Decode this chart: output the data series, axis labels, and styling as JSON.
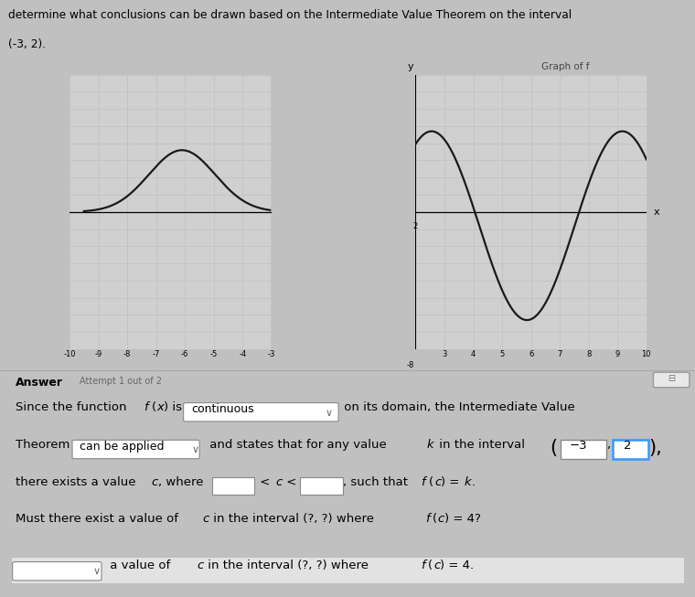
{
  "title_line1": "determine what conclusions can be drawn based on the Intermediate Value Theorem on the interval",
  "title_line2": "(-3, 2).",
  "graph_label": "Graph of f",
  "highlight_color": "#f2c8c8",
  "grid_color": "#bbbbbb",
  "graph_bg": "#d0d0d0",
  "outer_bg": "#c0c0c0",
  "curve_color": "#1a1a1a",
  "answer_bg": "#d8d8d8",
  "white": "#ffffff",
  "blue_border": "#3399ff",
  "gray_border": "#888888",
  "light_gray": "#e0e0e0",
  "text_gray": "#555555",
  "interval_val1": "-3",
  "interval_val2": "2"
}
